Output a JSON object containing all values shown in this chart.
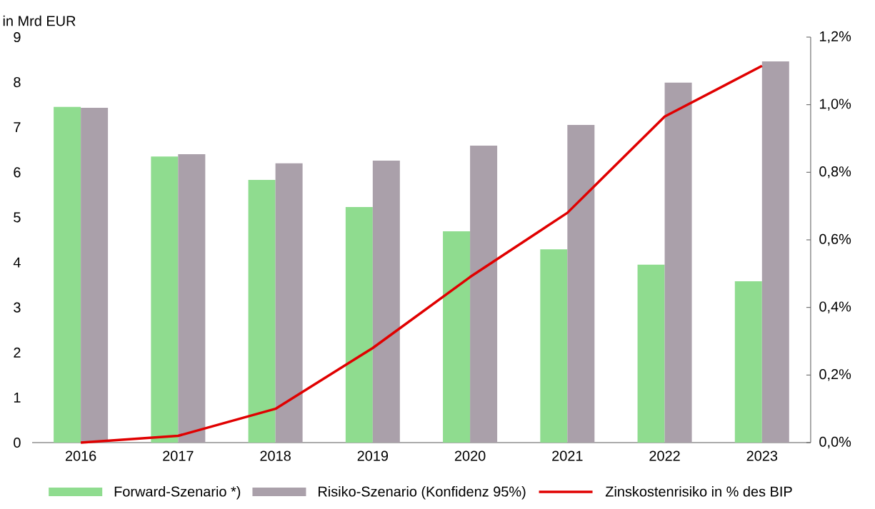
{
  "chart_data": {
    "type": "bar",
    "ylabel": "in Mrd EUR",
    "categories": [
      "2016",
      "2017",
      "2018",
      "2019",
      "2020",
      "2021",
      "2022",
      "2023"
    ],
    "series": [
      {
        "name": "Forward-Szenario *)",
        "color": "#8fdc8f",
        "values": [
          7.45,
          6.35,
          5.83,
          5.23,
          4.69,
          4.29,
          3.95,
          3.58
        ]
      },
      {
        "name": "Risiko-Szenario (Konfidenz 95%)",
        "color": "#aaa0aa",
        "values": [
          7.43,
          6.4,
          6.2,
          6.26,
          6.59,
          7.05,
          7.99,
          8.46
        ]
      },
      {
        "name": "Zinskostenrisiko in % des BIP",
        "type": "line",
        "axis": "y2",
        "color": "#e00000",
        "values": [
          0,
          0.02,
          0.1,
          0.28,
          0.49,
          0.68,
          0.965,
          1.115
        ]
      }
    ],
    "ylim": [
      0,
      9
    ],
    "yticks": [
      0,
      1,
      2,
      3,
      4,
      5,
      6,
      7,
      8,
      9
    ],
    "y2lim": [
      0,
      1.2
    ],
    "y2ticks": [
      {
        "value": 0,
        "label": "0,0%"
      },
      {
        "value": 0.2,
        "label": "0,2%"
      },
      {
        "value": 0.4,
        "label": "0,4%"
      },
      {
        "value": 0.6,
        "label": "0,6%"
      },
      {
        "value": 0.8,
        "label": "0,8%"
      },
      {
        "value": 1.0,
        "label": "1,0%"
      },
      {
        "value": 1.2,
        "label": "1,2%"
      }
    ],
    "legend": "bottom"
  }
}
